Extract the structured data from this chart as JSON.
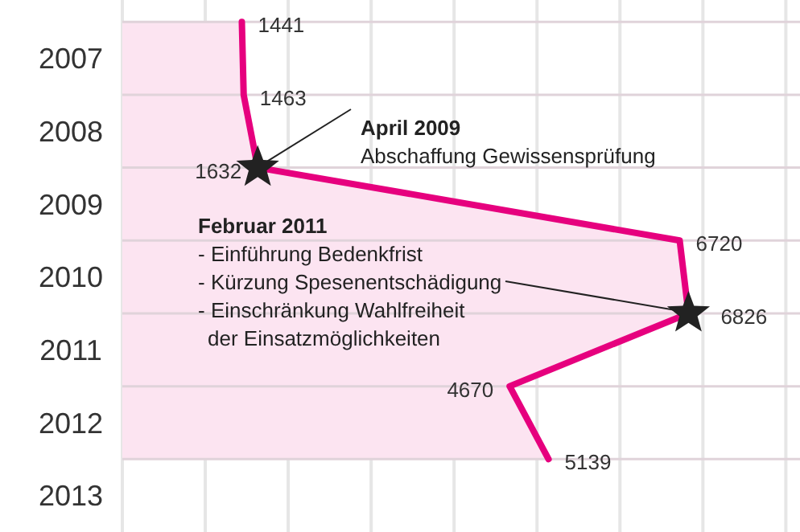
{
  "chart_data": {
    "type": "area",
    "orientation": "horizontal",
    "x": [
      2007,
      2008,
      2009,
      2010,
      2011,
      2012,
      2013
    ],
    "series": [
      {
        "color": "#e6007e",
        "values": [
          1441,
          1463,
          1632,
          6720,
          6826,
          4670,
          5139
        ]
      }
    ],
    "data_labels": true,
    "ylim": [
      2014,
      2006.7
    ],
    "yticks": [
      {
        "value": 2007,
        "label": null
      },
      {
        "value": 2007.5,
        "label": "2007"
      },
      {
        "value": 2008,
        "label": null
      },
      {
        "value": 2008.5,
        "label": "2008"
      },
      {
        "value": 2009,
        "label": null
      },
      {
        "value": 2009.5,
        "label": "2009"
      },
      {
        "value": 2010,
        "label": null
      },
      {
        "value": 2010.5,
        "label": "2010"
      },
      {
        "value": 2011,
        "label": null
      },
      {
        "value": 2011.5,
        "label": "2011"
      },
      {
        "value": 2012,
        "label": null
      },
      {
        "value": 2012.5,
        "label": "2012"
      },
      {
        "value": 2013,
        "label": null
      },
      {
        "value": 2013.5,
        "label": "2013"
      }
    ],
    "tick_labels": "y",
    "grid": true,
    "annotations": [
      {
        "text": "April 2009\nAbschaffung Gewissensprüfung",
        "x": 1632,
        "y": 2009
      },
      {
        "text": "Februar 2011\n- Einführung Bedenkfrist\n- Kürzung Spesenentschädigung\n- Einschränkung Wahlfreiheit\n  der Einsatzmöglichkeiten",
        "x": 6826,
        "y": 2011
      }
    ]
  }
}
